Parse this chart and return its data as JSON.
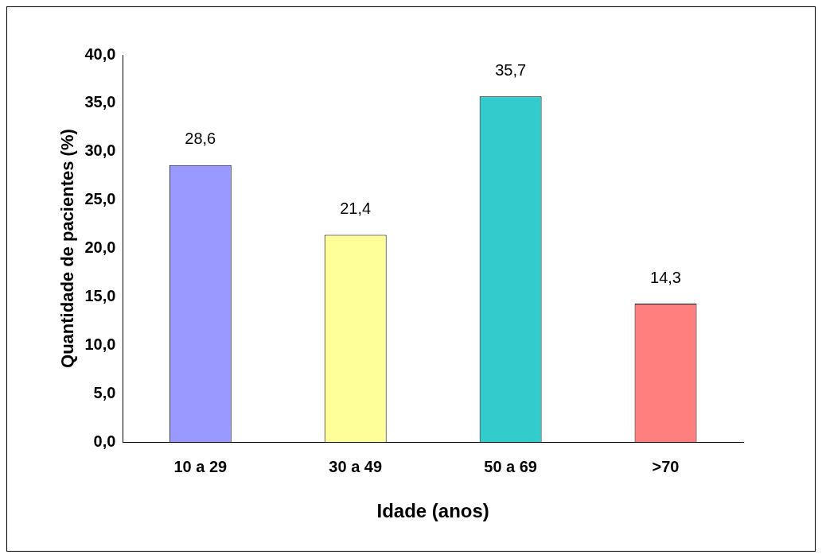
{
  "chart_data": {
    "type": "bar",
    "xlabel": "Idade (anos)",
    "ylabel": "Quantidade de pacientes (%)",
    "categories": [
      "10 a 29",
      "30 a 49",
      "50 a 69",
      ">70"
    ],
    "values": [
      28.6,
      21.4,
      35.7,
      14.3
    ],
    "value_labels": [
      "28,6",
      "21,4",
      "35,7",
      "14,3"
    ],
    "colors": [
      "#9999ff",
      "#ffff99",
      "#33cccc",
      "#ff7f7f"
    ],
    "ylim": [
      0,
      40
    ],
    "yticks": [
      {
        "value": 0,
        "label": "0,0"
      },
      {
        "value": 5,
        "label": "5,0"
      },
      {
        "value": 10,
        "label": "10,0"
      },
      {
        "value": 15,
        "label": "15,0"
      },
      {
        "value": 20,
        "label": "20,0"
      },
      {
        "value": 25,
        "label": "25,0"
      },
      {
        "value": 30,
        "label": "30,0"
      },
      {
        "value": 35,
        "label": "35,0"
      },
      {
        "value": 40,
        "label": "40,0"
      }
    ],
    "grid": false,
    "legend": false
  }
}
